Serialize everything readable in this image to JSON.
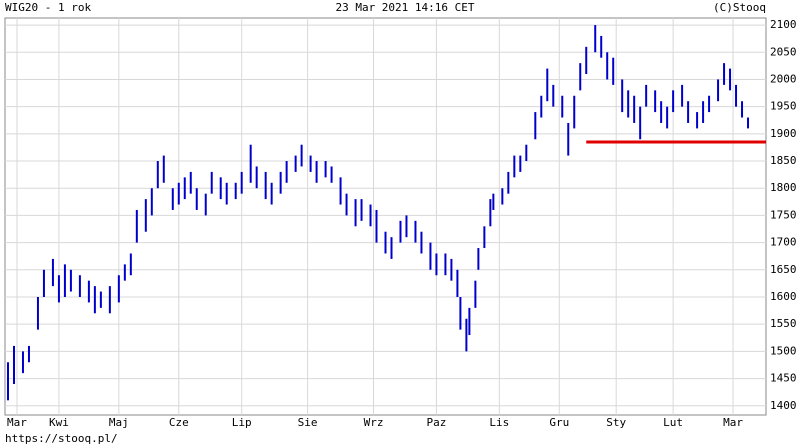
{
  "chart_data": {
    "type": "hilo",
    "title": "WIG20 - 1 rok",
    "subtitle": "23 Mar 2021 14:16 CET",
    "source": "(C)Stooq",
    "footer": "https://stooq.pl/",
    "color": "#0000cc",
    "grid": true,
    "x": [
      1,
      3,
      6,
      8,
      11,
      13,
      16,
      18,
      20,
      22,
      25,
      28,
      30,
      32,
      35,
      38,
      40,
      42,
      44,
      47,
      49,
      51,
      53,
      56,
      58,
      60,
      62,
      64,
      67,
      69,
      72,
      74,
      77,
      79,
      82,
      84,
      87,
      89,
      92,
      94,
      97,
      99,
      102,
      104,
      107,
      109,
      112,
      114,
      117,
      119,
      122,
      124,
      127,
      129,
      132,
      134,
      137,
      139,
      142,
      144,
      147,
      149,
      151,
      152,
      154,
      155,
      157,
      158,
      160,
      162,
      163,
      166,
      168,
      170,
      172,
      174,
      177,
      179,
      181,
      183,
      186,
      188,
      190,
      192,
      194,
      197,
      199,
      201,
      203,
      206,
      208,
      210,
      212,
      214,
      217,
      219,
      221,
      223,
      226,
      228,
      231,
      233,
      235,
      238,
      240,
      242,
      244,
      246,
      248
    ],
    "high": [
      1480,
      1510,
      1500,
      1510,
      1600,
      1650,
      1670,
      1640,
      1660,
      1650,
      1640,
      1630,
      1620,
      1610,
      1620,
      1640,
      1660,
      1680,
      1760,
      1780,
      1800,
      1850,
      1860,
      1800,
      1810,
      1820,
      1830,
      1800,
      1790,
      1830,
      1820,
      1810,
      1810,
      1830,
      1880,
      1840,
      1830,
      1810,
      1830,
      1850,
      1860,
      1880,
      1860,
      1850,
      1850,
      1840,
      1820,
      1790,
      1780,
      1780,
      1770,
      1760,
      1720,
      1710,
      1740,
      1750,
      1740,
      1720,
      1700,
      1680,
      1680,
      1670,
      1650,
      1600,
      1560,
      1580,
      1630,
      1690,
      1730,
      1780,
      1790,
      1800,
      1830,
      1860,
      1860,
      1880,
      1940,
      1970,
      2020,
      1990,
      1970,
      1920,
      1970,
      2030,
      2060,
      2100,
      2080,
      2050,
      2040,
      2000,
      1980,
      1970,
      1950,
      1990,
      1980,
      1960,
      1950,
      1980,
      1990,
      1960,
      1940,
      1960,
      1970,
      2000,
      2030,
      2020,
      1990,
      1960,
      1930
    ],
    "low": [
      1410,
      1440,
      1460,
      1480,
      1540,
      1600,
      1620,
      1590,
      1600,
      1610,
      1600,
      1590,
      1570,
      1580,
      1570,
      1590,
      1630,
      1640,
      1700,
      1720,
      1750,
      1800,
      1810,
      1760,
      1770,
      1780,
      1790,
      1760,
      1750,
      1790,
      1780,
      1770,
      1780,
      1790,
      1810,
      1800,
      1780,
      1770,
      1790,
      1810,
      1830,
      1840,
      1830,
      1810,
      1820,
      1810,
      1770,
      1750,
      1730,
      1740,
      1730,
      1700,
      1680,
      1670,
      1700,
      1710,
      1700,
      1680,
      1650,
      1640,
      1640,
      1630,
      1600,
      1540,
      1500,
      1530,
      1580,
      1650,
      1690,
      1730,
      1760,
      1770,
      1790,
      1820,
      1830,
      1850,
      1890,
      1930,
      1960,
      1950,
      1930,
      1860,
      1910,
      1980,
      2010,
      2050,
      2040,
      2000,
      1990,
      1940,
      1930,
      1920,
      1890,
      1950,
      1940,
      1920,
      1910,
      1940,
      1950,
      1920,
      1910,
      1920,
      1940,
      1960,
      1990,
      1980,
      1950,
      1930,
      1910
    ],
    "xlim": [
      0,
      254
    ],
    "xticks": [
      {
        "value": 4,
        "label": "Mar"
      },
      {
        "value": 18,
        "label": "Kwi"
      },
      {
        "value": 38,
        "label": "Maj"
      },
      {
        "value": 58,
        "label": "Cze"
      },
      {
        "value": 79,
        "label": "Lip"
      },
      {
        "value": 101,
        "label": "Sie"
      },
      {
        "value": 123,
        "label": "Wrz"
      },
      {
        "value": 144,
        "label": "Paz"
      },
      {
        "value": 165,
        "label": "Lis"
      },
      {
        "value": 185,
        "label": "Gru"
      },
      {
        "value": 204,
        "label": "Sty"
      },
      {
        "value": 223,
        "label": "Lut"
      },
      {
        "value": 243,
        "label": "Mar"
      }
    ],
    "ylim": [
      1383,
      2113
    ],
    "yticks": [
      1400,
      1450,
      1500,
      1550,
      1600,
      1650,
      1700,
      1750,
      1800,
      1850,
      1900,
      1950,
      2000,
      2050,
      2100
    ],
    "hline": {
      "y": 1885,
      "x": [
        194,
        254
      ],
      "color": "#e00000"
    }
  }
}
